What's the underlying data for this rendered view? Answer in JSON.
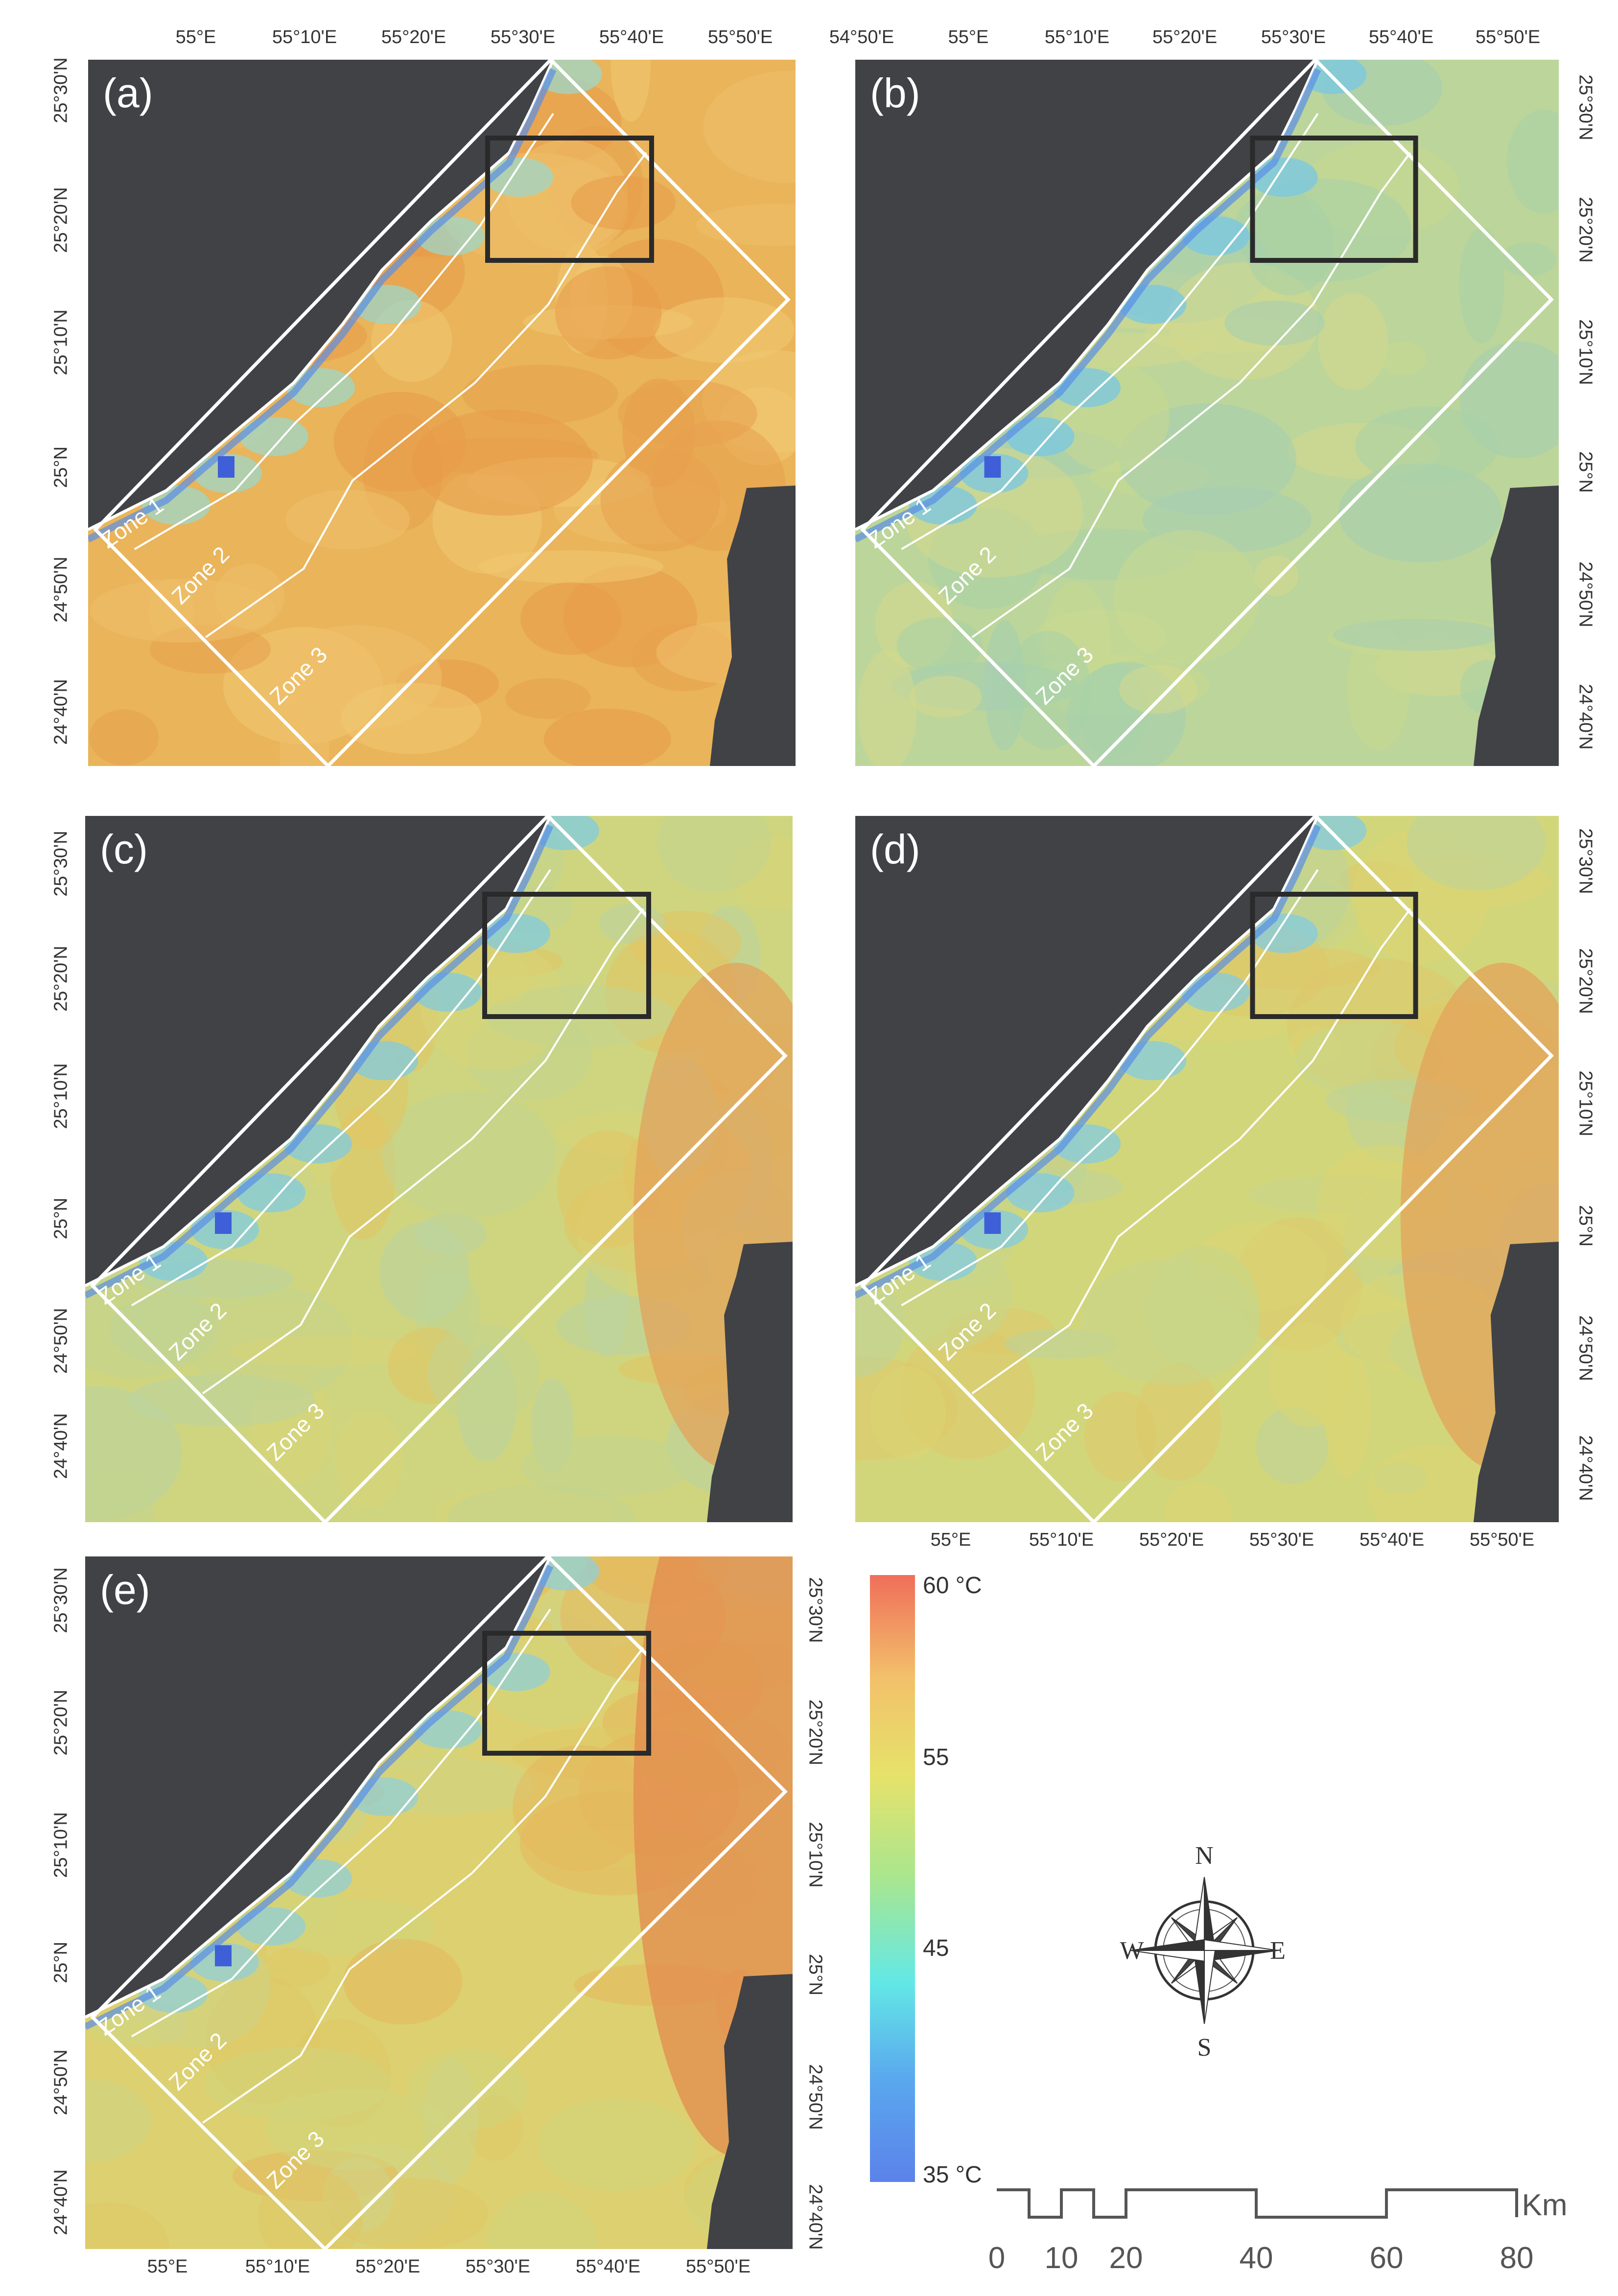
{
  "panels": [
    {
      "id": "a",
      "label": "(a)",
      "theme": "hot"
    },
    {
      "id": "b",
      "label": "(b)",
      "theme": "cool"
    },
    {
      "id": "c",
      "label": "(c)",
      "theme": "mid"
    },
    {
      "id": "d",
      "label": "(d)",
      "theme": "mid2"
    },
    {
      "id": "e",
      "label": "(e)",
      "theme": "warm"
    }
  ],
  "zones": [
    "Zone 1",
    "Zone 2",
    "Zone 3"
  ],
  "lon_ticks_a": [
    "55°E",
    "55°10'E",
    "55°20'E",
    "55°30'E",
    "55°40'E",
    "55°50'E"
  ],
  "lon_ticks_b": [
    "54°50'E",
    "55°E",
    "55°10'E",
    "55°20'E",
    "55°30'E",
    "55°40'E",
    "55°50'E"
  ],
  "lon_ticks_d": [
    "55°E",
    "55°10'E",
    "55°20'E",
    "55°30'E",
    "55°40'E",
    "55°50'E"
  ],
  "lon_ticks_e": [
    "55°E",
    "55°10'E",
    "55°20'E",
    "55°30'E",
    "55°40'E",
    "55°50'E"
  ],
  "lat_ticks": [
    "25°30'N",
    "25°20'N",
    "25°10'N",
    "25°N",
    "24°50'N",
    "24°40'N"
  ],
  "legend": {
    "max_label": "60 °C",
    "mid_label_1": "55",
    "mid_label_2": "45",
    "min_label": "35 °C",
    "colors": [
      "#f06e5a",
      "#f2c16a",
      "#e6e26a",
      "#a9e68f",
      "#63e8e6",
      "#5aa8ee",
      "#5b82ea"
    ]
  },
  "compass": {
    "n": "N",
    "e": "E",
    "s": "S",
    "w": "W"
  },
  "scale": {
    "unit": "Km",
    "ticks": [
      "0",
      "10",
      "20",
      "40",
      "60",
      "80"
    ]
  },
  "colors": {
    "sea": "#404246",
    "zone_line": "#ffffff",
    "study_box": "#2a2a2a"
  }
}
